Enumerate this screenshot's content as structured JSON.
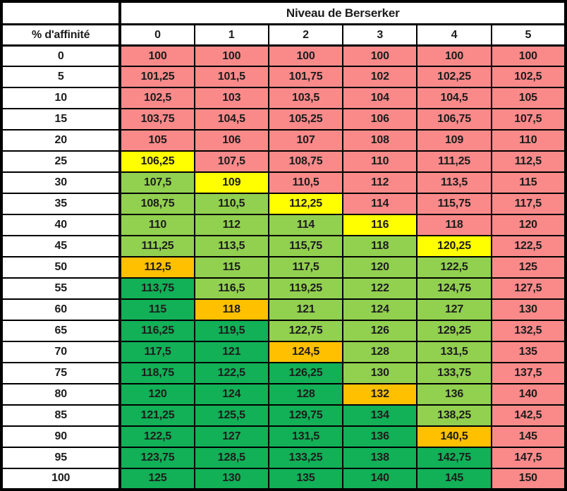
{
  "colors": {
    "border": "#000000",
    "text": "#1c1c1c",
    "header_background": "#ffffff",
    "red": "#FA8A8A",
    "yellow": "#FFFF00",
    "orange": "#FFC000",
    "green_light": "#92D050",
    "green_dark": "#12B057"
  },
  "chart_data": {
    "type": "heatmap",
    "title": "Niveau de Berserker",
    "row_label": "% d'affinité",
    "columns": [
      "0",
      "1",
      "2",
      "3",
      "4",
      "5"
    ],
    "rows": [
      "0",
      "5",
      "10",
      "15",
      "20",
      "25",
      "30",
      "35",
      "40",
      "45",
      "50",
      "55",
      "60",
      "65",
      "70",
      "75",
      "80",
      "85",
      "90",
      "95",
      "100"
    ],
    "values": [
      [
        "100",
        "100",
        "100",
        "100",
        "100",
        "100"
      ],
      [
        "101,25",
        "101,5",
        "101,75",
        "102",
        "102,25",
        "102,5"
      ],
      [
        "102,5",
        "103",
        "103,5",
        "104",
        "104,5",
        "105"
      ],
      [
        "103,75",
        "104,5",
        "105,25",
        "106",
        "106,75",
        "107,5"
      ],
      [
        "105",
        "106",
        "107",
        "108",
        "109",
        "110"
      ],
      [
        "106,25",
        "107,5",
        "108,75",
        "110",
        "111,25",
        "112,5"
      ],
      [
        "107,5",
        "109",
        "110,5",
        "112",
        "113,5",
        "115"
      ],
      [
        "108,75",
        "110,5",
        "112,25",
        "114",
        "115,75",
        "117,5"
      ],
      [
        "110",
        "112",
        "114",
        "116",
        "118",
        "120"
      ],
      [
        "111,25",
        "113,5",
        "115,75",
        "118",
        "120,25",
        "122,5"
      ],
      [
        "112,5",
        "115",
        "117,5",
        "120",
        "122,5",
        "125"
      ],
      [
        "113,75",
        "116,5",
        "119,25",
        "122",
        "124,75",
        "127,5"
      ],
      [
        "115",
        "118",
        "121",
        "124",
        "127",
        "130"
      ],
      [
        "116,25",
        "119,5",
        "122,75",
        "126",
        "129,25",
        "132,5"
      ],
      [
        "117,5",
        "121",
        "124,5",
        "128",
        "131,5",
        "135"
      ],
      [
        "118,75",
        "122,5",
        "126,25",
        "130",
        "133,75",
        "137,5"
      ],
      [
        "120",
        "124",
        "128",
        "132",
        "136",
        "140"
      ],
      [
        "121,25",
        "125,5",
        "129,75",
        "134",
        "138,25",
        "142,5"
      ],
      [
        "122,5",
        "127",
        "131,5",
        "136",
        "140,5",
        "145"
      ],
      [
        "123,75",
        "128,5",
        "133,25",
        "138",
        "142,75",
        "147,5"
      ],
      [
        "125",
        "130",
        "135",
        "140",
        "145",
        "150"
      ]
    ],
    "cell_colors": [
      [
        "red",
        "red",
        "red",
        "red",
        "red",
        "red"
      ],
      [
        "red",
        "red",
        "red",
        "red",
        "red",
        "red"
      ],
      [
        "red",
        "red",
        "red",
        "red",
        "red",
        "red"
      ],
      [
        "red",
        "red",
        "red",
        "red",
        "red",
        "red"
      ],
      [
        "red",
        "red",
        "red",
        "red",
        "red",
        "red"
      ],
      [
        "yellow",
        "red",
        "red",
        "red",
        "red",
        "red"
      ],
      [
        "green_light",
        "yellow",
        "red",
        "red",
        "red",
        "red"
      ],
      [
        "green_light",
        "green_light",
        "yellow",
        "red",
        "red",
        "red"
      ],
      [
        "green_light",
        "green_light",
        "green_light",
        "yellow",
        "red",
        "red"
      ],
      [
        "green_light",
        "green_light",
        "green_light",
        "green_light",
        "yellow",
        "red"
      ],
      [
        "orange",
        "green_light",
        "green_light",
        "green_light",
        "green_light",
        "red"
      ],
      [
        "green_dark",
        "green_light",
        "green_light",
        "green_light",
        "green_light",
        "red"
      ],
      [
        "green_dark",
        "orange",
        "green_light",
        "green_light",
        "green_light",
        "red"
      ],
      [
        "green_dark",
        "green_dark",
        "green_light",
        "green_light",
        "green_light",
        "red"
      ],
      [
        "green_dark",
        "green_dark",
        "orange",
        "green_light",
        "green_light",
        "red"
      ],
      [
        "green_dark",
        "green_dark",
        "green_dark",
        "green_light",
        "green_light",
        "red"
      ],
      [
        "green_dark",
        "green_dark",
        "green_dark",
        "orange",
        "green_light",
        "red"
      ],
      [
        "green_dark",
        "green_dark",
        "green_dark",
        "green_dark",
        "green_light",
        "red"
      ],
      [
        "green_dark",
        "green_dark",
        "green_dark",
        "green_dark",
        "orange",
        "red"
      ],
      [
        "green_dark",
        "green_dark",
        "green_dark",
        "green_dark",
        "green_dark",
        "red"
      ],
      [
        "green_dark",
        "green_dark",
        "green_dark",
        "green_dark",
        "green_dark",
        "red"
      ]
    ]
  }
}
